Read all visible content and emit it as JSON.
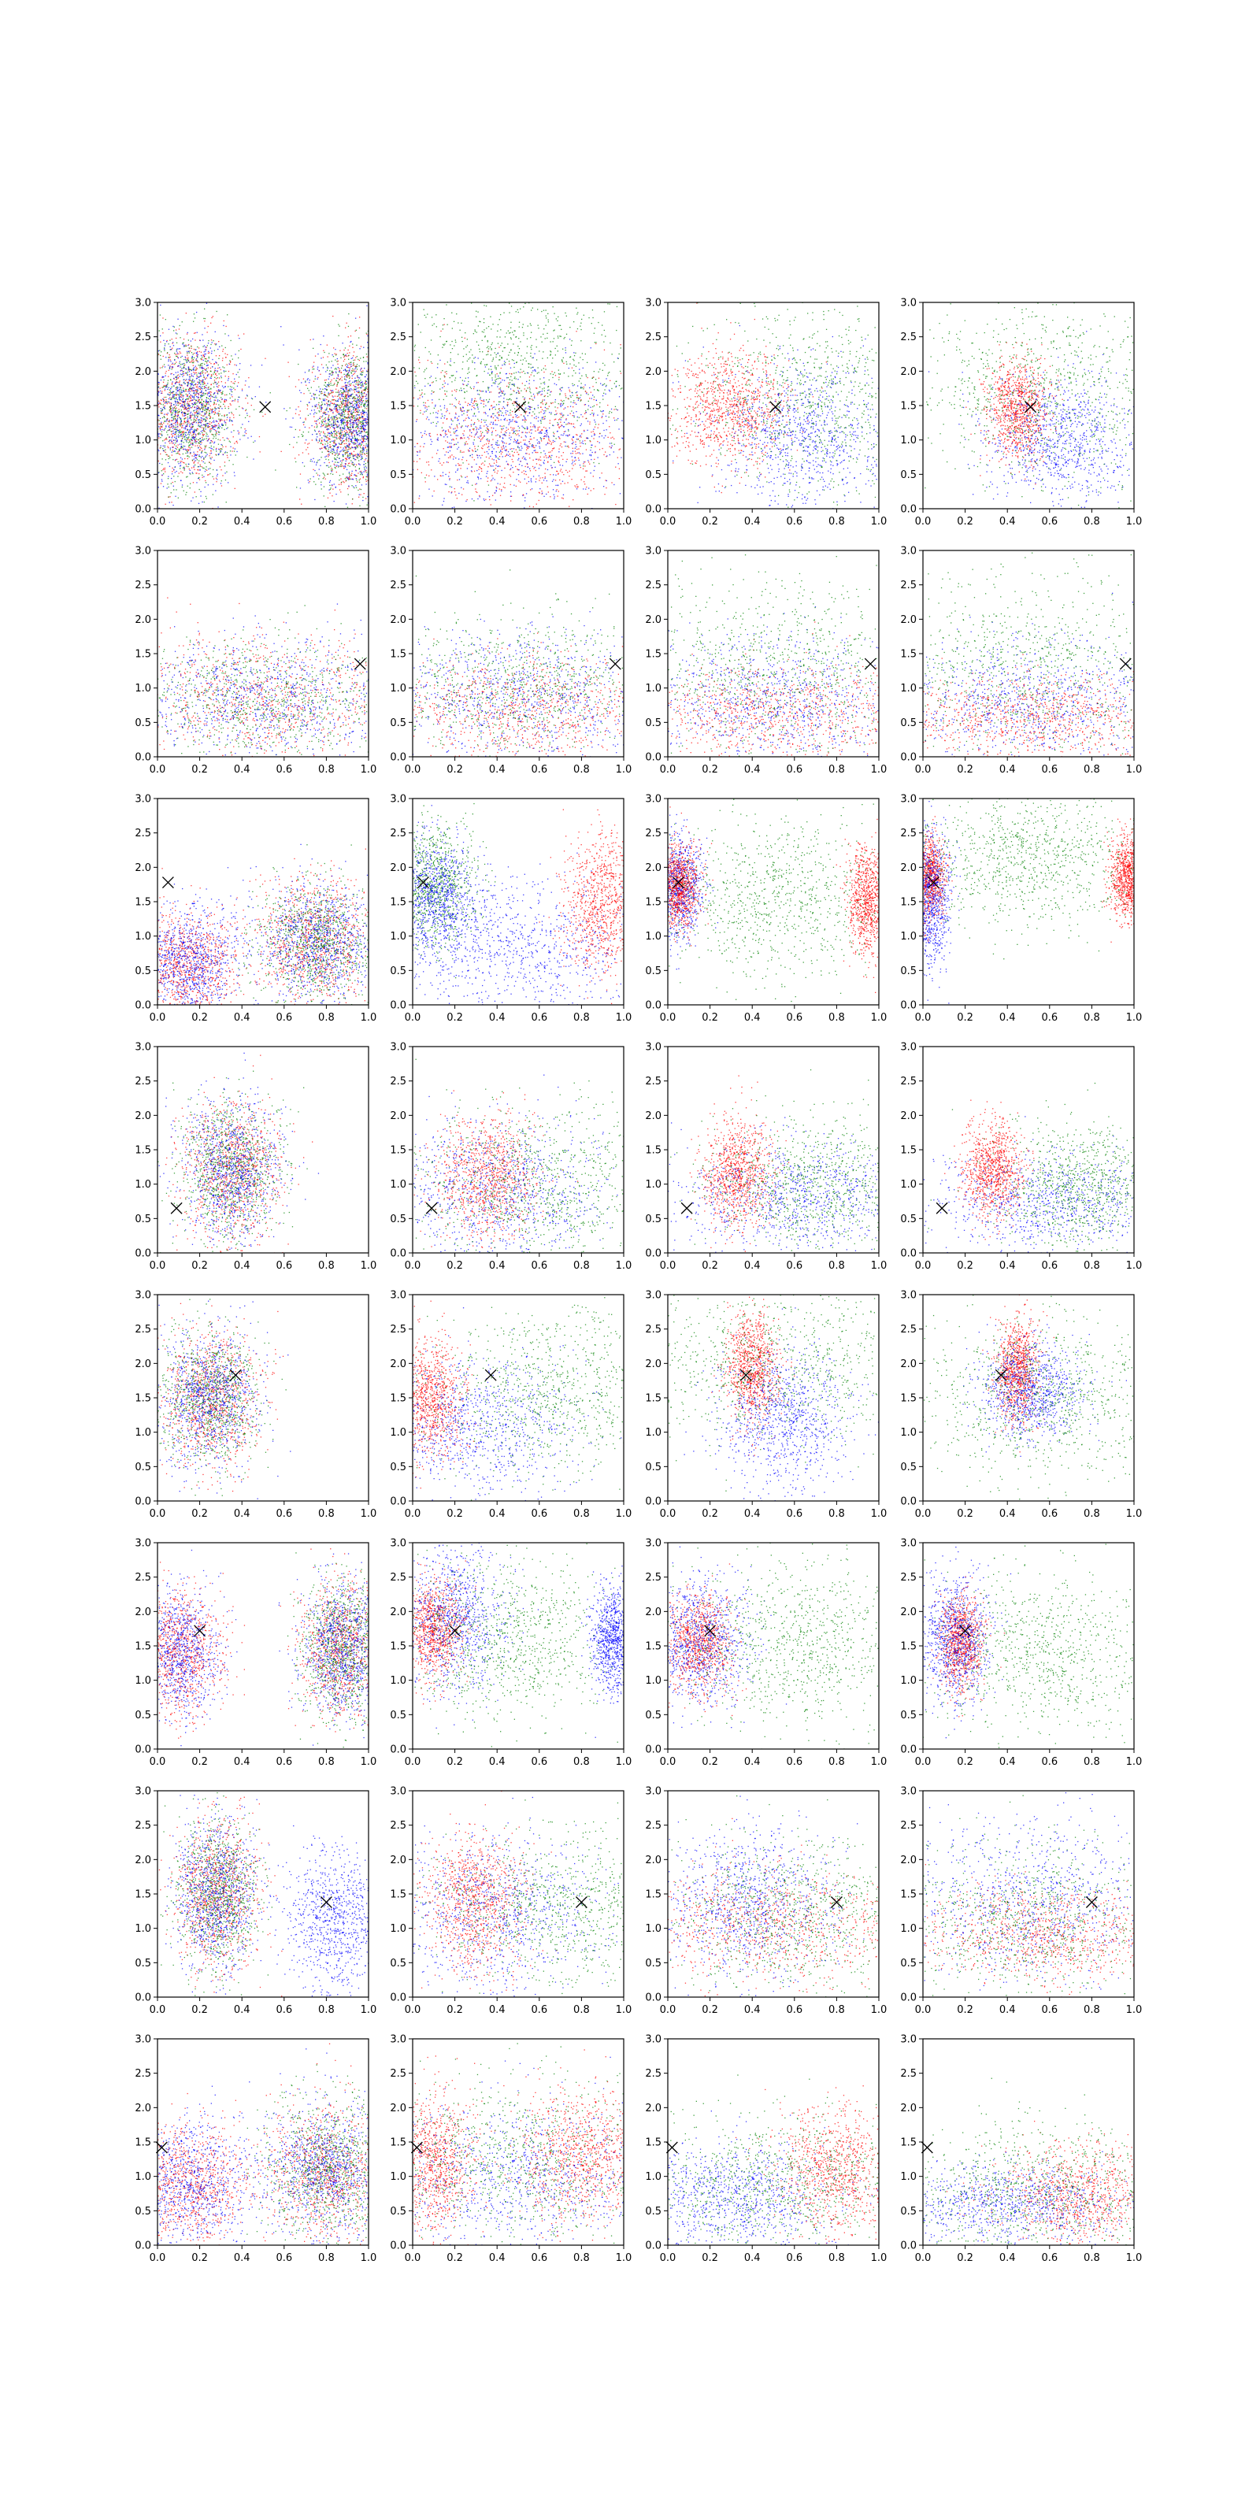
{
  "chart_data": {
    "type": "scatter",
    "layout": {
      "rows": 8,
      "cols": 4
    },
    "axes_common": {
      "xlim": [
        0.0,
        1.0
      ],
      "ylim": [
        0.0,
        3.0
      ],
      "xticks": [
        "0.0",
        "0.2",
        "0.4",
        "0.6",
        "0.8",
        "1.0"
      ],
      "yticks": [
        "0.0",
        "0.5",
        "1.0",
        "1.5",
        "2.0",
        "2.5",
        "3.0"
      ],
      "grid": false
    },
    "series_colors": {
      "red": "#ff0000",
      "green": "#008000",
      "blue": "#0000ff"
    },
    "marker_color": "#000000",
    "rows": [
      {
        "marker": [
          0.51,
          1.48
        ],
        "panels": [
          {
            "clusters": [
              [
                0.15,
                1.45,
                0.12,
                0.55,
                "r"
              ],
              [
                0.15,
                1.45,
                0.12,
                0.55,
                "g"
              ],
              [
                0.15,
                1.45,
                0.12,
                0.55,
                "b"
              ],
              [
                0.92,
                1.3,
                0.1,
                0.5,
                "r"
              ],
              [
                0.92,
                1.3,
                0.1,
                0.5,
                "g"
              ],
              [
                0.92,
                1.3,
                0.1,
                0.5,
                "b"
              ]
            ]
          },
          {
            "clusters": [
              [
                0.5,
                2.0,
                0.3,
                0.6,
                "g"
              ],
              [
                0.5,
                1.0,
                0.3,
                0.5,
                "r"
              ],
              [
                0.5,
                1.1,
                0.3,
                0.5,
                "b"
              ]
            ]
          },
          {
            "clusters": [
              [
                0.3,
                1.45,
                0.14,
                0.4,
                "r"
              ],
              [
                0.65,
                1.05,
                0.2,
                0.55,
                "b"
              ],
              [
                0.7,
                1.6,
                0.3,
                0.7,
                "g"
              ]
            ]
          },
          {
            "clusters": [
              [
                0.45,
                1.45,
                0.07,
                0.35,
                "r"
              ],
              [
                0.65,
                0.95,
                0.18,
                0.5,
                "b"
              ],
              [
                0.6,
                1.7,
                0.35,
                0.7,
                "g"
              ]
            ]
          }
        ]
      },
      {
        "marker": [
          0.96,
          1.35
        ],
        "panels": [
          {
            "clusters": [
              [
                0.5,
                0.85,
                0.35,
                0.45,
                "r"
              ],
              [
                0.5,
                0.85,
                0.35,
                0.45,
                "g"
              ],
              [
                0.5,
                0.85,
                0.35,
                0.45,
                "b"
              ]
            ]
          },
          {
            "clusters": [
              [
                0.5,
                0.7,
                0.35,
                0.4,
                "r"
              ],
              [
                0.5,
                0.85,
                0.35,
                0.5,
                "b"
              ],
              [
                0.5,
                1.0,
                0.35,
                0.55,
                "g"
              ]
            ]
          },
          {
            "clusters": [
              [
                0.5,
                0.65,
                0.35,
                0.35,
                "r"
              ],
              [
                0.5,
                0.85,
                0.35,
                0.45,
                "b"
              ],
              [
                0.5,
                1.3,
                0.35,
                0.65,
                "g"
              ]
            ]
          },
          {
            "clusters": [
              [
                0.5,
                0.6,
                0.35,
                0.3,
                "r"
              ],
              [
                0.5,
                0.8,
                0.35,
                0.45,
                "b"
              ],
              [
                0.5,
                1.3,
                0.35,
                0.7,
                "g"
              ]
            ]
          }
        ]
      },
      {
        "marker": [
          0.05,
          1.78
        ],
        "panels": [
          {
            "clusters": [
              [
                0.75,
                0.9,
                0.14,
                0.45,
                "r"
              ],
              [
                0.75,
                0.9,
                0.14,
                0.45,
                "g"
              ],
              [
                0.75,
                0.9,
                0.14,
                0.45,
                "b"
              ],
              [
                0.15,
                0.6,
                0.12,
                0.4,
                "r"
              ],
              [
                0.15,
                0.6,
                0.12,
                0.4,
                "b"
              ]
            ]
          },
          {
            "clusters": [
              [
                0.1,
                1.75,
                0.1,
                0.45,
                "g"
              ],
              [
                0.1,
                1.6,
                0.1,
                0.4,
                "b"
              ],
              [
                0.9,
                1.5,
                0.09,
                0.5,
                "r"
              ],
              [
                0.5,
                0.8,
                0.3,
                0.5,
                "b"
              ]
            ]
          },
          {
            "clusters": [
              [
                0.05,
                1.7,
                0.06,
                0.35,
                "b"
              ],
              [
                0.05,
                1.7,
                0.05,
                0.3,
                "r"
              ],
              [
                0.95,
                1.5,
                0.05,
                0.4,
                "r"
              ],
              [
                0.5,
                1.5,
                0.3,
                0.6,
                "g"
              ]
            ]
          },
          {
            "clusters": [
              [
                0.03,
                1.85,
                0.04,
                0.3,
                "r"
              ],
              [
                0.97,
                1.85,
                0.04,
                0.3,
                "r"
              ],
              [
                0.03,
                1.5,
                0.05,
                0.5,
                "b"
              ],
              [
                0.5,
                2.1,
                0.25,
                0.5,
                "g"
              ]
            ]
          }
        ]
      },
      {
        "marker": [
          0.09,
          0.65
        ],
        "panels": [
          {
            "clusters": [
              [
                0.35,
                1.2,
                0.12,
                0.5,
                "r"
              ],
              [
                0.35,
                1.2,
                0.12,
                0.5,
                "g"
              ],
              [
                0.35,
                1.2,
                0.12,
                0.5,
                "b"
              ]
            ]
          },
          {
            "clusters": [
              [
                0.35,
                1.1,
                0.12,
                0.45,
                "r"
              ],
              [
                0.4,
                0.9,
                0.25,
                0.5,
                "b"
              ],
              [
                0.6,
                1.0,
                0.3,
                0.55,
                "g"
              ]
            ]
          },
          {
            "clusters": [
              [
                0.33,
                1.15,
                0.08,
                0.4,
                "r"
              ],
              [
                0.6,
                0.8,
                0.3,
                0.4,
                "b"
              ],
              [
                0.7,
                1.0,
                0.25,
                0.5,
                "g"
              ]
            ]
          },
          {
            "clusters": [
              [
                0.33,
                1.2,
                0.07,
                0.35,
                "r"
              ],
              [
                0.6,
                0.75,
                0.3,
                0.35,
                "b"
              ],
              [
                0.75,
                0.95,
                0.2,
                0.5,
                "g"
              ]
            ]
          }
        ]
      },
      {
        "marker": [
          0.37,
          1.83
        ],
        "panels": [
          {
            "clusters": [
              [
                0.25,
                1.5,
                0.12,
                0.5,
                "r"
              ],
              [
                0.25,
                1.5,
                0.12,
                0.5,
                "g"
              ],
              [
                0.25,
                1.5,
                0.12,
                0.5,
                "b"
              ]
            ]
          },
          {
            "clusters": [
              [
                0.08,
                1.5,
                0.08,
                0.45,
                "r"
              ],
              [
                0.3,
                1.1,
                0.25,
                0.5,
                "b"
              ],
              [
                0.65,
                1.6,
                0.3,
                0.6,
                "g"
              ]
            ]
          },
          {
            "clusters": [
              [
                0.4,
                1.95,
                0.06,
                0.4,
                "r"
              ],
              [
                0.55,
                1.2,
                0.15,
                0.5,
                "b"
              ],
              [
                0.5,
                2.0,
                0.35,
                0.6,
                "g"
              ]
            ]
          },
          {
            "clusters": [
              [
                0.45,
                1.9,
                0.05,
                0.35,
                "r"
              ],
              [
                0.5,
                1.6,
                0.12,
                0.35,
                "b"
              ],
              [
                0.55,
                1.5,
                0.3,
                0.6,
                "g"
              ]
            ]
          }
        ]
      },
      {
        "marker": [
          0.2,
          1.72
        ],
        "panels": [
          {
            "clusters": [
              [
                0.88,
                1.45,
                0.1,
                0.5,
                "r"
              ],
              [
                0.88,
                1.45,
                0.1,
                0.5,
                "g"
              ],
              [
                0.88,
                1.45,
                0.1,
                0.5,
                "b"
              ],
              [
                0.1,
                1.4,
                0.1,
                0.45,
                "r"
              ],
              [
                0.1,
                1.4,
                0.1,
                0.45,
                "b"
              ]
            ]
          },
          {
            "clusters": [
              [
                0.1,
                1.75,
                0.07,
                0.35,
                "r"
              ],
              [
                0.2,
                1.9,
                0.12,
                0.5,
                "b"
              ],
              [
                0.45,
                1.6,
                0.25,
                0.6,
                "g"
              ],
              [
                0.95,
                1.6,
                0.05,
                0.4,
                "b"
              ]
            ]
          },
          {
            "clusters": [
              [
                0.15,
                1.55,
                0.08,
                0.35,
                "r"
              ],
              [
                0.15,
                1.6,
                0.12,
                0.45,
                "b"
              ],
              [
                0.6,
                1.5,
                0.3,
                0.6,
                "g"
              ]
            ]
          },
          {
            "clusters": [
              [
                0.18,
                1.55,
                0.05,
                0.35,
                "r"
              ],
              [
                0.15,
                1.6,
                0.08,
                0.45,
                "b"
              ],
              [
                0.6,
                1.4,
                0.3,
                0.6,
                "g"
              ]
            ]
          }
        ]
      },
      {
        "marker": [
          0.8,
          1.38
        ],
        "panels": [
          {
            "clusters": [
              [
                0.28,
                1.5,
                0.1,
                0.55,
                "r"
              ],
              [
                0.28,
                1.5,
                0.1,
                0.55,
                "g"
              ],
              [
                0.28,
                1.5,
                0.1,
                0.55,
                "b"
              ],
              [
                0.85,
                1.1,
                0.12,
                0.5,
                "b"
              ]
            ]
          },
          {
            "clusters": [
              [
                0.3,
                1.4,
                0.12,
                0.5,
                "r"
              ],
              [
                0.4,
                1.2,
                0.25,
                0.55,
                "b"
              ],
              [
                0.7,
                1.3,
                0.3,
                0.55,
                "g"
              ]
            ]
          },
          {
            "clusters": [
              [
                0.5,
                1.05,
                0.35,
                0.4,
                "r"
              ],
              [
                0.4,
                1.4,
                0.2,
                0.55,
                "b"
              ],
              [
                0.6,
                1.2,
                0.3,
                0.55,
                "g"
              ]
            ]
          },
          {
            "clusters": [
              [
                0.6,
                0.95,
                0.3,
                0.35,
                "r"
              ],
              [
                0.5,
                1.4,
                0.3,
                0.6,
                "b"
              ],
              [
                0.5,
                1.1,
                0.35,
                0.55,
                "g"
              ]
            ]
          }
        ]
      },
      {
        "marker": [
          0.02,
          1.42
        ],
        "panels": [
          {
            "clusters": [
              [
                0.8,
                1.1,
                0.15,
                0.5,
                "r"
              ],
              [
                0.8,
                1.1,
                0.15,
                0.5,
                "g"
              ],
              [
                0.8,
                1.1,
                0.15,
                0.5,
                "b"
              ],
              [
                0.15,
                0.9,
                0.15,
                0.45,
                "r"
              ],
              [
                0.15,
                0.9,
                0.15,
                0.45,
                "b"
              ]
            ]
          },
          {
            "clusters": [
              [
                0.8,
                1.3,
                0.15,
                0.5,
                "r"
              ],
              [
                0.1,
                1.2,
                0.1,
                0.5,
                "r"
              ],
              [
                0.5,
                1.0,
                0.35,
                0.55,
                "b"
              ],
              [
                0.5,
                1.2,
                0.35,
                0.6,
                "g"
              ]
            ]
          },
          {
            "clusters": [
              [
                0.8,
                1.1,
                0.15,
                0.45,
                "r"
              ],
              [
                0.3,
                0.7,
                0.25,
                0.4,
                "b"
              ],
              [
                0.5,
                0.9,
                0.35,
                0.5,
                "g"
              ]
            ]
          },
          {
            "clusters": [
              [
                0.75,
                0.75,
                0.2,
                0.35,
                "r"
              ],
              [
                0.4,
                0.6,
                0.3,
                0.3,
                "b"
              ],
              [
                0.5,
                0.8,
                0.35,
                0.5,
                "g"
              ]
            ]
          }
        ]
      }
    ]
  }
}
